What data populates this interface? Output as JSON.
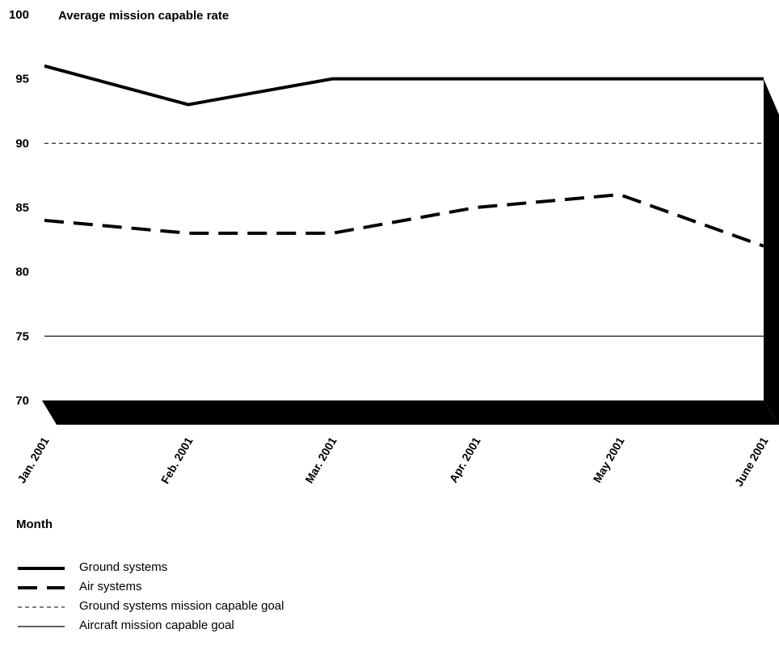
{
  "chart_data": {
    "type": "line",
    "ylabel": "Average mission capable rate",
    "xlabel": "Month",
    "ylim": [
      70,
      100
    ],
    "yticks": [
      70,
      75,
      80,
      85,
      90,
      95,
      100
    ],
    "categories": [
      "Jan. 2001",
      "Feb. 2001",
      "Mar. 2001",
      "Apr. 2001",
      "May 2001",
      "June 2001"
    ],
    "series": [
      {
        "name": "Ground systems",
        "style": "thick-solid",
        "values": [
          96,
          93,
          95,
          95,
          95,
          95
        ]
      },
      {
        "name": "Air systems",
        "style": "thick-dashed",
        "values": [
          84,
          83,
          83,
          85,
          86,
          82
        ]
      },
      {
        "name": "Ground systems mission capable goal",
        "style": "thin-dashed",
        "values": [
          90,
          90,
          90,
          90,
          90,
          90
        ]
      },
      {
        "name": "Aircraft mission capable goal",
        "style": "thin-solid",
        "values": [
          75,
          75,
          75,
          75,
          75,
          75
        ]
      }
    ],
    "legend_position": "bottom-left",
    "grid": false,
    "colors": {
      "line": "#000000",
      "frame": "#000000",
      "background": "#ffffff"
    }
  }
}
